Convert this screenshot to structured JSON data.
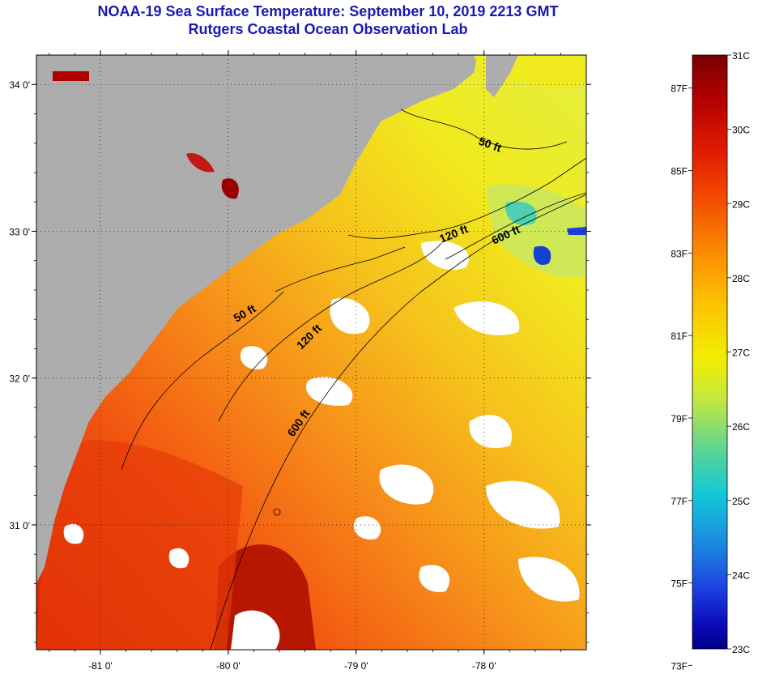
{
  "header": {
    "title": "NOAA-19 Sea Surface Temperature:  September 10, 2019 2213 GMT",
    "subtitle": "Rutgers Coastal Ocean Observation Lab"
  },
  "map": {
    "lat_ticks": [
      "34 0'",
      "33 0'",
      "32 0'",
      "31 0'"
    ],
    "lon_ticks": [
      "-81 0'",
      "-80 0'",
      "-79 0'",
      "-78 0'"
    ],
    "lat_range": [
      30.15,
      34.2
    ],
    "lon_range": [
      -81.5,
      -77.2
    ],
    "contours": {
      "c50a": "50 ft",
      "c50b": "50 ft",
      "c120a": "120 ft",
      "c120b": "120 ft",
      "c600a": "600 ft",
      "c600b": "600 ft"
    }
  },
  "colorbar": {
    "celsius": [
      "31C",
      "30C",
      "29C",
      "28C",
      "27C",
      "26C",
      "25C",
      "24C",
      "23C"
    ],
    "fahrenheit": [
      "87F",
      "85F",
      "83F",
      "81F",
      "79F",
      "77F",
      "75F",
      "73F"
    ],
    "stops": [
      "#7a0000",
      "#b00000",
      "#e11a00",
      "#f24a00",
      "#fb8a00",
      "#fcc300",
      "#f2ee00",
      "#c2e840",
      "#57d39a",
      "#12c9d7",
      "#1b8be0",
      "#1c3fe0",
      "#0a0ab8",
      "#00008a"
    ]
  },
  "colors": {
    "land": "#adadad",
    "warm": "#f26a10",
    "cool": "#f3e61e",
    "title": "#1a1ab4"
  }
}
